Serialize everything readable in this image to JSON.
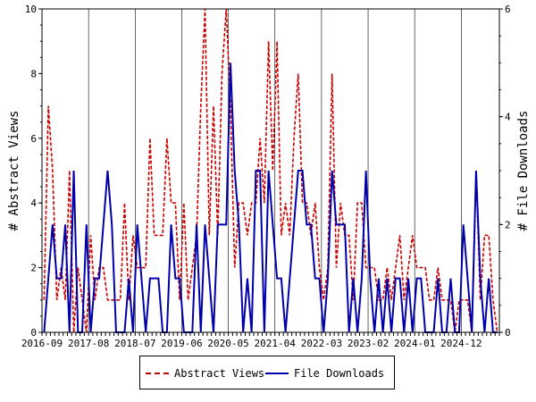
{
  "chart_data": {
    "type": "line",
    "xlabel": "",
    "ylabel": "# Abstract Views",
    "y2label": "# File Downloads",
    "ylim": [
      0,
      10
    ],
    "y2lim": [
      0,
      6
    ],
    "yticks": [
      "0",
      "2",
      "4",
      "6",
      "8",
      "10"
    ],
    "y2ticks": [
      "0",
      "2",
      "4",
      "6"
    ],
    "x_tick_labels": [
      "2016-09",
      "2017-08",
      "2018-07",
      "2019-06",
      "2020-05",
      "2021-04",
      "2022-03",
      "2023-02",
      "2024-01",
      "2024-12"
    ],
    "grid": "vertical",
    "legend_placement": "bottom",
    "colors": {
      "abstract_views": "#cc0000",
      "file_downloads": "#0000aa"
    },
    "months": 108,
    "series": [
      {
        "name": "Abstract Views",
        "axis": "left",
        "style": "dashed",
        "values": [
          1,
          7,
          5,
          1,
          2,
          1,
          5,
          0,
          2,
          1,
          0,
          3,
          1,
          2,
          2,
          1,
          1,
          1,
          1,
          4,
          1,
          3,
          2,
          2,
          2,
          6,
          3,
          3,
          3,
          6,
          4,
          4,
          1,
          4,
          1,
          2,
          3,
          7,
          10,
          3,
          7,
          3,
          8,
          10,
          7,
          2,
          4,
          4,
          3,
          4,
          4,
          6,
          4,
          9,
          5,
          9,
          3,
          4,
          3,
          6,
          8,
          4,
          4,
          3,
          4,
          2,
          1,
          2,
          8,
          2,
          4,
          3,
          3,
          1,
          4,
          4,
          2,
          2,
          2,
          1,
          1,
          2,
          1,
          2,
          3,
          1,
          2,
          3,
          2,
          2,
          2,
          1,
          1,
          2,
          1,
          1,
          1,
          0,
          1,
          1,
          1,
          0,
          5,
          1,
          3,
          3,
          1,
          0
        ]
      },
      {
        "name": "File Downloads",
        "axis": "right",
        "style": "solid",
        "values": [
          0,
          1,
          2,
          1,
          1,
          2,
          0,
          3,
          0,
          0,
          2,
          0,
          1,
          1,
          2,
          3,
          2,
          0,
          0,
          0,
          1,
          0,
          2,
          1,
          0,
          1,
          1,
          1,
          0,
          0,
          2,
          1,
          1,
          0,
          0,
          0,
          2,
          0,
          2,
          1,
          0,
          2,
          2,
          2,
          5,
          3,
          2,
          0,
          1,
          0,
          3,
          3,
          0,
          3,
          2,
          1,
          1,
          0,
          1,
          2,
          3,
          3,
          2,
          2,
          1,
          1,
          0,
          1,
          3,
          2,
          2,
          2,
          0,
          1,
          0,
          1,
          3,
          1,
          0,
          1,
          0,
          1,
          0,
          1,
          1,
          0,
          1,
          0,
          1,
          1,
          0,
          0,
          0,
          1,
          0,
          0,
          1,
          0,
          0,
          2,
          1,
          0,
          3,
          1,
          0,
          1,
          0,
          0
        ]
      }
    ]
  }
}
